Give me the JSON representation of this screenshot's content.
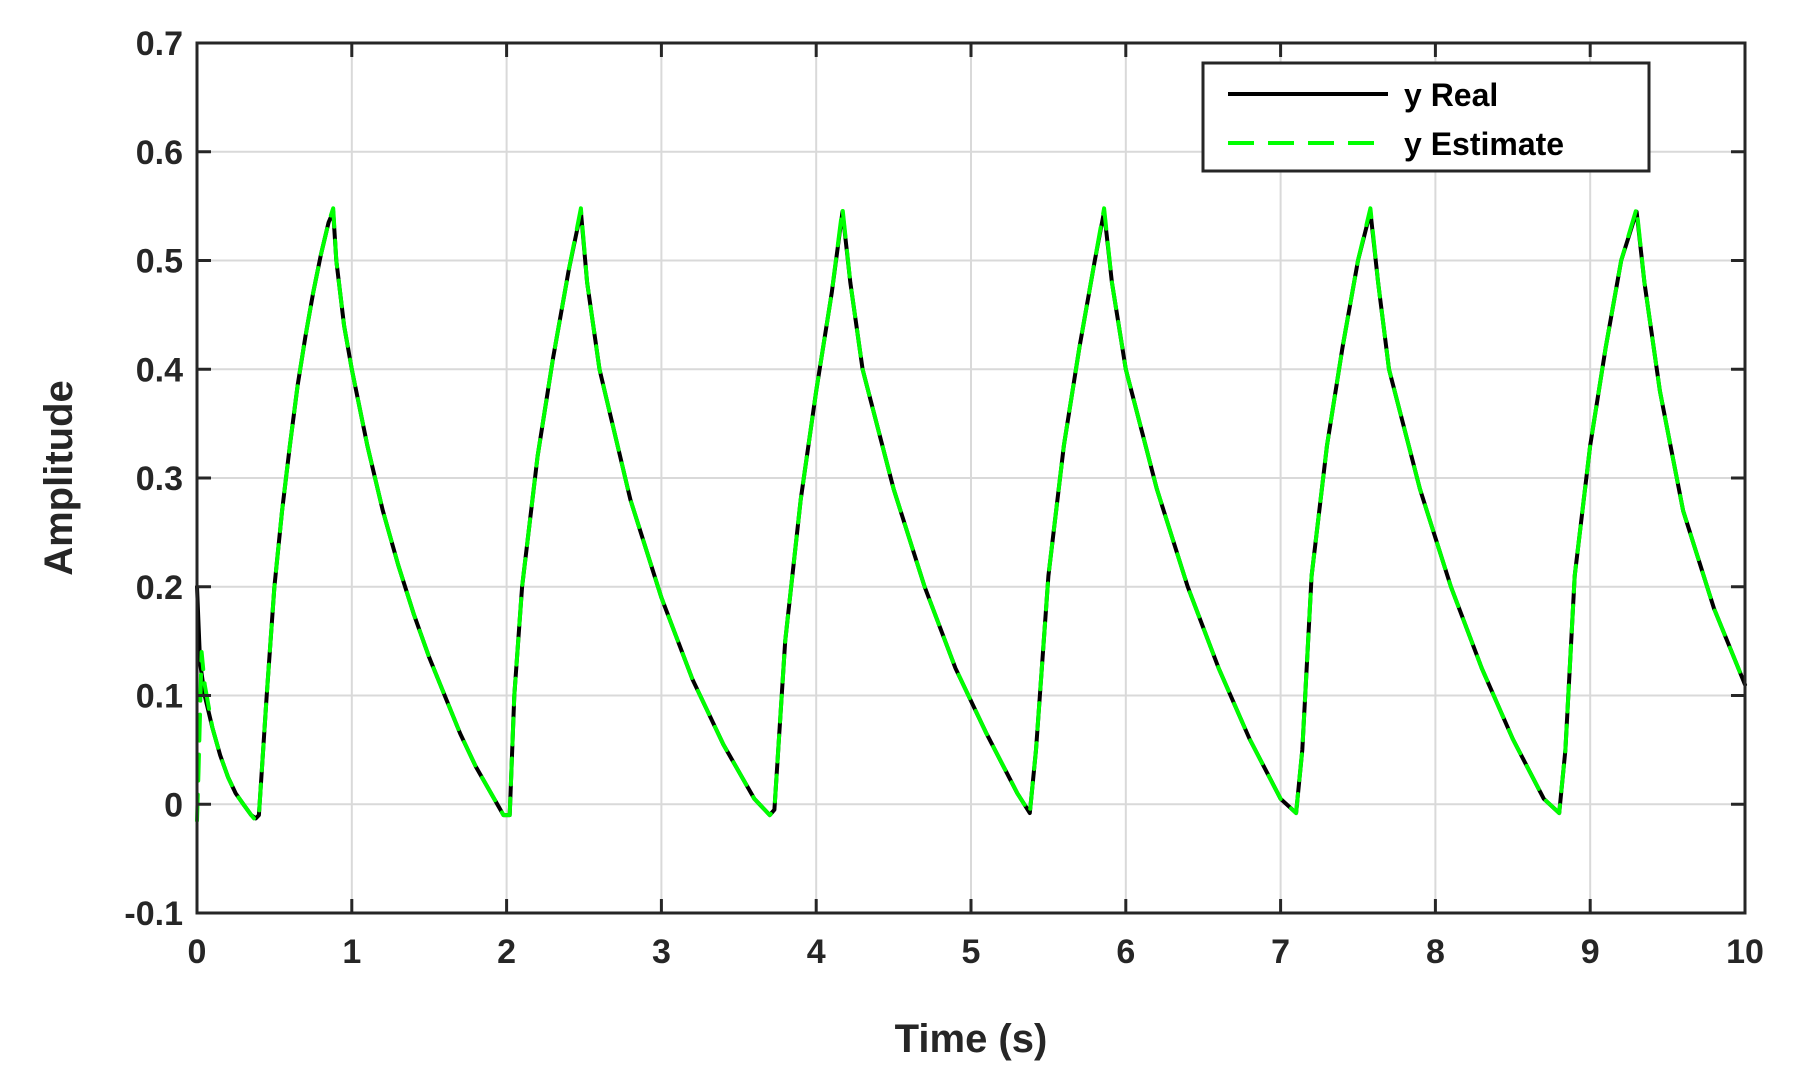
{
  "chart_data": {
    "type": "line",
    "title": "",
    "xlabel": "Time (s)",
    "ylabel": "Amplitude",
    "xlim": [
      0,
      10
    ],
    "ylim": [
      -0.1,
      0.7
    ],
    "x_ticks": [
      0,
      1,
      2,
      3,
      4,
      5,
      6,
      7,
      8,
      9,
      10
    ],
    "x_tick_labels": [
      "0",
      "1",
      "2",
      "3",
      "4",
      "5",
      "6",
      "7",
      "8",
      "9",
      "10"
    ],
    "y_ticks": [
      -0.1,
      0,
      0.1,
      0.2,
      0.3,
      0.4,
      0.5,
      0.6,
      0.7
    ],
    "y_tick_labels": [
      "-0.1",
      "0",
      "0.1",
      "0.2",
      "0.3",
      "0.4",
      "0.5",
      "0.6",
      "0.7"
    ],
    "grid": true,
    "legend_position": "top-right",
    "colors": {
      "y_real": "#000000",
      "y_estimate": "#00ff00",
      "grid": "#d9d9d9",
      "axes": "#262626"
    },
    "series": [
      {
        "name": "y Real",
        "style": "solid",
        "x": [
          0,
          0.02,
          0.05,
          0.1,
          0.15,
          0.2,
          0.25,
          0.3,
          0.35,
          0.38,
          0.4,
          0.45,
          0.5,
          0.55,
          0.6,
          0.65,
          0.7,
          0.75,
          0.8,
          0.85,
          0.88,
          0.9,
          0.95,
          1.0,
          1.1,
          1.2,
          1.3,
          1.4,
          1.5,
          1.6,
          1.7,
          1.8,
          1.9,
          1.98,
          2.02,
          2.05,
          2.1,
          2.2,
          2.3,
          2.4,
          2.48,
          2.52,
          2.6,
          2.8,
          3.0,
          3.2,
          3.4,
          3.6,
          3.7,
          3.73,
          3.8,
          3.9,
          4.0,
          4.1,
          4.17,
          4.22,
          4.3,
          4.5,
          4.7,
          4.9,
          5.1,
          5.3,
          5.38,
          5.42,
          5.5,
          5.6,
          5.7,
          5.8,
          5.86,
          5.91,
          6.0,
          6.2,
          6.4,
          6.6,
          6.8,
          7.0,
          7.1,
          7.14,
          7.2,
          7.3,
          7.4,
          7.5,
          7.58,
          7.63,
          7.7,
          7.9,
          8.1,
          8.3,
          8.5,
          8.7,
          8.8,
          8.84,
          8.9,
          9.0,
          9.1,
          9.2,
          9.3,
          9.35,
          9.45,
          9.6,
          9.8,
          10.0
        ],
        "y": [
          0.2,
          0.13,
          0.1,
          0.07,
          0.045,
          0.025,
          0.01,
          0.0,
          -0.01,
          -0.013,
          -0.01,
          0.1,
          0.2,
          0.27,
          0.33,
          0.385,
          0.43,
          0.47,
          0.505,
          0.535,
          0.545,
          0.5,
          0.44,
          0.4,
          0.33,
          0.27,
          0.22,
          0.175,
          0.135,
          0.1,
          0.065,
          0.035,
          0.01,
          -0.01,
          -0.01,
          0.1,
          0.2,
          0.32,
          0.41,
          0.49,
          0.545,
          0.48,
          0.4,
          0.28,
          0.19,
          0.115,
          0.055,
          0.005,
          -0.01,
          -0.005,
          0.15,
          0.28,
          0.38,
          0.47,
          0.545,
          0.48,
          0.4,
          0.29,
          0.2,
          0.125,
          0.065,
          0.01,
          -0.008,
          0.05,
          0.21,
          0.33,
          0.42,
          0.5,
          0.545,
          0.48,
          0.4,
          0.29,
          0.2,
          0.125,
          0.06,
          0.005,
          -0.008,
          0.05,
          0.21,
          0.33,
          0.42,
          0.5,
          0.545,
          0.48,
          0.4,
          0.29,
          0.2,
          0.125,
          0.06,
          0.005,
          -0.008,
          0.05,
          0.21,
          0.33,
          0.42,
          0.5,
          0.545,
          0.48,
          0.38,
          0.27,
          0.18,
          0.11
        ]
      },
      {
        "name": "y Estimate",
        "style": "dashed",
        "x": [
          0,
          0.01,
          0.03,
          0.05,
          0.1,
          0.15,
          0.2,
          0.25,
          0.3,
          0.35,
          0.38,
          0.4,
          0.45,
          0.5,
          0.55,
          0.6,
          0.65,
          0.7,
          0.75,
          0.8,
          0.85,
          0.88,
          0.9,
          0.95,
          1.0,
          1.1,
          1.2,
          1.3,
          1.4,
          1.5,
          1.6,
          1.7,
          1.8,
          1.9,
          1.98,
          2.02,
          2.05,
          2.1,
          2.2,
          2.3,
          2.4,
          2.48,
          2.52,
          2.6,
          2.8,
          3.0,
          3.2,
          3.4,
          3.6,
          3.7,
          3.73,
          3.8,
          3.9,
          4.0,
          4.1,
          4.17,
          4.22,
          4.3,
          4.5,
          4.7,
          4.9,
          5.1,
          5.3,
          5.38,
          5.42,
          5.5,
          5.6,
          5.7,
          5.8,
          5.86,
          5.91,
          6.0,
          6.2,
          6.4,
          6.6,
          6.8,
          7.0,
          7.1,
          7.14,
          7.2,
          7.3,
          7.4,
          7.5,
          7.58,
          7.63,
          7.7,
          7.9,
          8.1,
          8.3,
          8.5,
          8.7,
          8.8,
          8.84,
          8.9,
          9.0,
          9.1,
          9.2,
          9.3,
          9.35,
          9.45,
          9.6,
          9.8,
          10.0
        ],
        "y": [
          -0.015,
          0.03,
          0.14,
          0.11,
          0.07,
          0.045,
          0.025,
          0.01,
          0.0,
          -0.01,
          -0.015,
          -0.01,
          0.1,
          0.2,
          0.27,
          0.33,
          0.385,
          0.43,
          0.47,
          0.505,
          0.535,
          0.548,
          0.5,
          0.44,
          0.4,
          0.33,
          0.27,
          0.22,
          0.175,
          0.135,
          0.1,
          0.065,
          0.035,
          0.01,
          -0.01,
          -0.01,
          0.1,
          0.2,
          0.32,
          0.41,
          0.49,
          0.548,
          0.48,
          0.4,
          0.28,
          0.19,
          0.115,
          0.055,
          0.005,
          -0.01,
          -0.005,
          0.15,
          0.28,
          0.38,
          0.47,
          0.548,
          0.48,
          0.4,
          0.29,
          0.2,
          0.125,
          0.065,
          0.01,
          -0.008,
          0.05,
          0.21,
          0.33,
          0.42,
          0.5,
          0.548,
          0.48,
          0.4,
          0.29,
          0.2,
          0.125,
          0.06,
          0.005,
          -0.008,
          0.05,
          0.21,
          0.33,
          0.42,
          0.5,
          0.548,
          0.48,
          0.4,
          0.29,
          0.2,
          0.125,
          0.06,
          0.005,
          -0.008,
          0.05,
          0.21,
          0.33,
          0.42,
          0.5,
          0.548,
          0.48,
          0.38,
          0.27,
          0.18,
          0.11
        ]
      }
    ]
  }
}
